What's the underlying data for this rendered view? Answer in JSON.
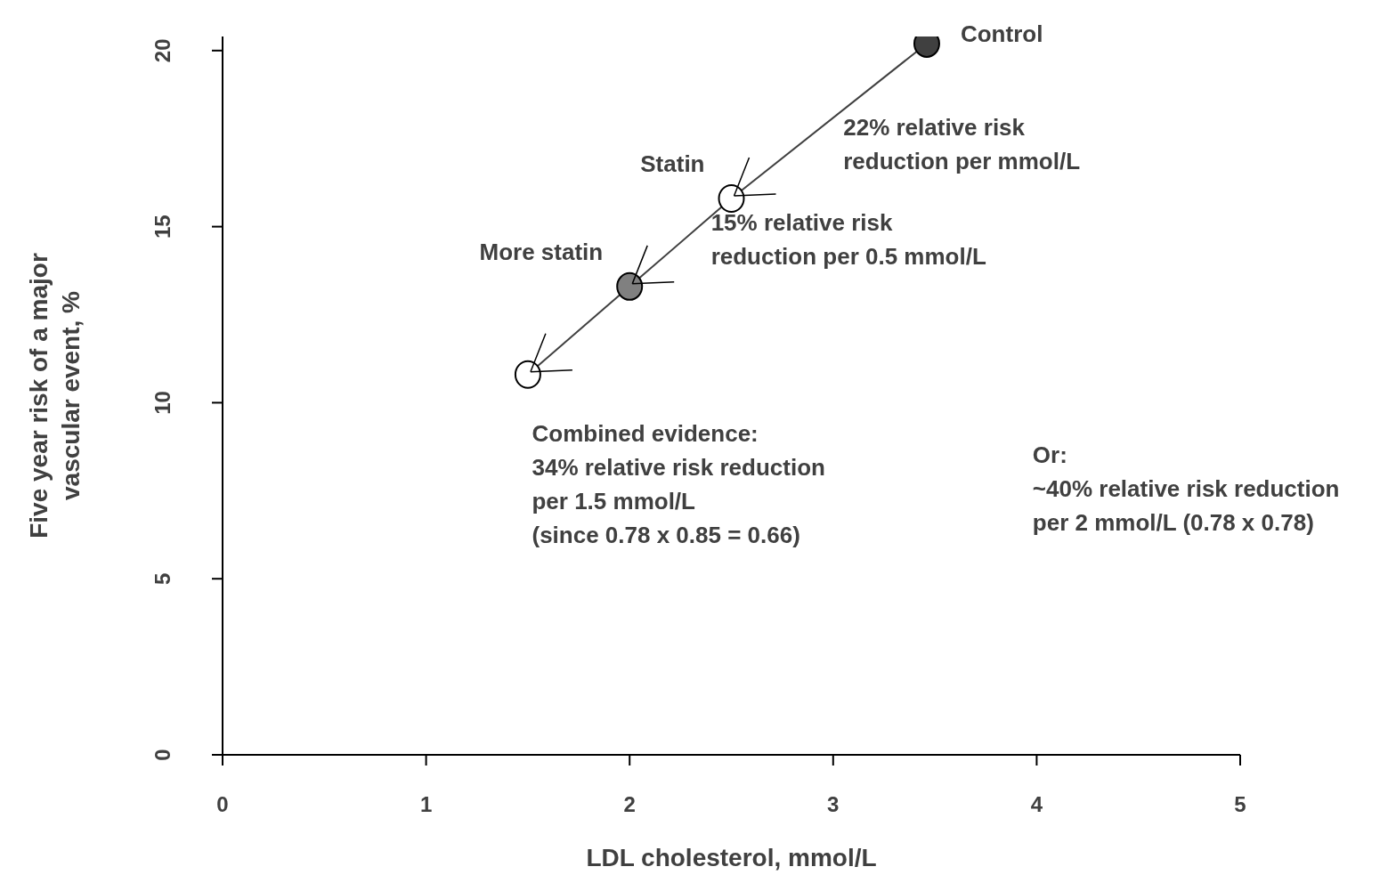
{
  "chart_data": {
    "type": "line",
    "xlabel": "LDL cholesterol, mmol/L",
    "ylabel": "Five year risk of a major\nvascular event, %",
    "x": [
      1.5,
      2.0,
      2.5,
      3.46
    ],
    "series": [
      {
        "color": "#404040",
        "values": [
          10.8,
          13.3,
          15.8,
          20.2
        ],
        "colors": [
          "#ffffff",
          "#808080",
          "#ffffff",
          "#404040"
        ]
      }
    ],
    "marker": "circle",
    "line_style": "solid",
    "xlim": [
      0,
      5
    ],
    "xticks": [
      0,
      1,
      2,
      3,
      4,
      5
    ],
    "ylim": [
      0,
      20.4
    ],
    "yticks": [
      0,
      5,
      10,
      15,
      20
    ],
    "annotations": [
      {
        "text": "Control",
        "x": 3.46,
        "y": 20.2
      },
      {
        "text": "Statin",
        "x": 2.5,
        "y": 15.8
      },
      {
        "text": "More statin",
        "x": 2.0,
        "y": 13.3
      },
      "22% relative risk\nreduction per mmol/L",
      "15% relative risk\nreduction per 0.5 mmol/L",
      "Combined evidence:\n34% relative risk reduction\nper 1.5 mmol/L\n(since 0.78 x 0.85 = 0.66)",
      "Or:\n~40% relative risk reduction\nper 2 mmol/L (0.78 x 0.78)"
    ]
  }
}
